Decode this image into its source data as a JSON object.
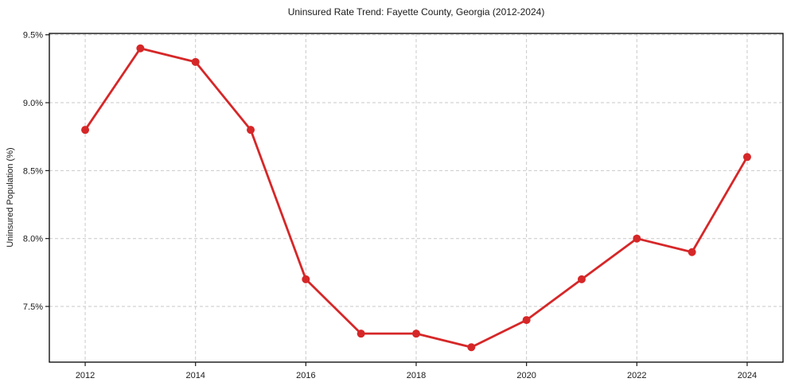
{
  "chart_data": {
    "type": "line",
    "title": "Uninsured Rate Trend: Fayette County, Georgia (2012-2024)",
    "xlabel": "",
    "ylabel": "Uninsured Population (%)",
    "x": [
      2012,
      2013,
      2014,
      2015,
      2016,
      2017,
      2018,
      2019,
      2020,
      2021,
      2022,
      2023,
      2024
    ],
    "values": [
      8.8,
      9.4,
      9.3,
      8.8,
      7.7,
      7.3,
      7.3,
      7.2,
      7.4,
      7.7,
      8.0,
      7.9,
      8.6
    ],
    "x_ticks": [
      2012,
      2014,
      2016,
      2018,
      2020,
      2022,
      2024
    ],
    "y_ticks": [
      7.5,
      8.0,
      8.5,
      9.0,
      9.5
    ],
    "y_tick_suffix": "%",
    "y_tick_decimals": 1,
    "xlim": [
      2011.35,
      2024.65
    ],
    "ylim": [
      7.09,
      9.51
    ],
    "grid": true,
    "legend_visible": false,
    "colors": {
      "line": "#d62728",
      "marker": "#d62728",
      "grid": "#c9c9c9",
      "spine": "#000000",
      "tick": "#1a1a1a",
      "text": "#1a1a1a",
      "background": "#ffffff"
    }
  }
}
